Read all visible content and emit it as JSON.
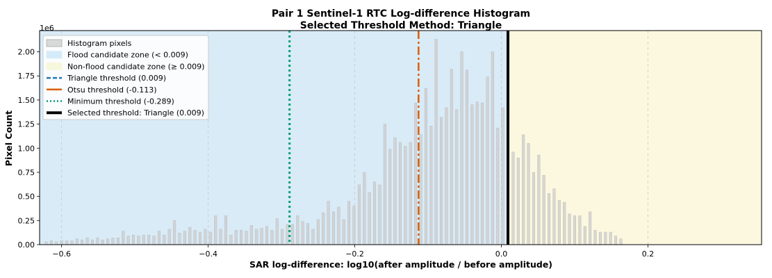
{
  "chart_data": {
    "type": "bar",
    "title": "Pair 1 Sentinel-1 RTC Log-difference Histogram",
    "subtitle": "Selected Threshold Method: Triangle",
    "xlabel": "SAR log-difference: log10(after amplitude / before amplitude)",
    "ylabel": "Pixel Count",
    "y_offset_label": "1e6",
    "xlim": [
      -0.63,
      0.355
    ],
    "ylim": [
      0,
      2.22
    ],
    "y_unit_scale": 1000000,
    "x_ticks": [
      -0.6,
      -0.4,
      -0.2,
      0.0,
      0.2
    ],
    "x_tick_labels": [
      "−0.6",
      "−0.4",
      "−0.2",
      "0.0",
      "0.2"
    ],
    "y_ticks": [
      0,
      0.25,
      0.5,
      0.75,
      1.0,
      1.25,
      1.5,
      1.75,
      2.0
    ],
    "y_tick_labels": [
      "0.00",
      "0.25",
      "0.50",
      "0.75",
      "1.00",
      "1.25",
      "1.50",
      "1.75",
      "2.00"
    ],
    "grid": "vertical-dashed",
    "legend_position": "top-left",
    "flood_zone": {
      "x_min": -0.63,
      "x_max": 0.009,
      "color": "#d9ebf7"
    },
    "nonflood_zone": {
      "x_min": 0.009,
      "x_max": 0.355,
      "color": "#fcf8e0"
    },
    "thresholds": [
      {
        "key": "triangle",
        "x": 0.009,
        "color": "#1f77b4",
        "style": "dashed"
      },
      {
        "key": "otsu",
        "x": -0.113,
        "color": "#d95f02",
        "style": "dashdot"
      },
      {
        "key": "minimum",
        "x": -0.289,
        "color": "#009e73",
        "style": "dotted"
      },
      {
        "key": "selected",
        "x": 0.009,
        "color": "#000000",
        "style": "solid"
      }
    ],
    "histogram": {
      "bar_color": "#cccccc",
      "bins": [
        {
          "x": -0.621,
          "y": 0.03
        },
        {
          "x": -0.614,
          "y": 0.04
        },
        {
          "x": -0.607,
          "y": 0.03
        },
        {
          "x": -0.6,
          "y": 0.04
        },
        {
          "x": -0.593,
          "y": 0.04
        },
        {
          "x": -0.586,
          "y": 0.04
        },
        {
          "x": -0.579,
          "y": 0.06
        },
        {
          "x": -0.572,
          "y": 0.05
        },
        {
          "x": -0.565,
          "y": 0.07
        },
        {
          "x": -0.558,
          "y": 0.05
        },
        {
          "x": -0.551,
          "y": 0.07
        },
        {
          "x": -0.544,
          "y": 0.05
        },
        {
          "x": -0.537,
          "y": 0.06
        },
        {
          "x": -0.53,
          "y": 0.07
        },
        {
          "x": -0.523,
          "y": 0.07
        },
        {
          "x": -0.516,
          "y": 0.14
        },
        {
          "x": -0.509,
          "y": 0.09
        },
        {
          "x": -0.502,
          "y": 0.1
        },
        {
          "x": -0.495,
          "y": 0.09
        },
        {
          "x": -0.488,
          "y": 0.1
        },
        {
          "x": -0.481,
          "y": 0.1
        },
        {
          "x": -0.474,
          "y": 0.09
        },
        {
          "x": -0.467,
          "y": 0.14
        },
        {
          "x": -0.46,
          "y": 0.1
        },
        {
          "x": -0.453,
          "y": 0.16
        },
        {
          "x": -0.446,
          "y": 0.25
        },
        {
          "x": -0.439,
          "y": 0.12
        },
        {
          "x": -0.432,
          "y": 0.14
        },
        {
          "x": -0.425,
          "y": 0.18
        },
        {
          "x": -0.418,
          "y": 0.15
        },
        {
          "x": -0.411,
          "y": 0.13
        },
        {
          "x": -0.404,
          "y": 0.16
        },
        {
          "x": -0.397,
          "y": 0.13
        },
        {
          "x": -0.39,
          "y": 0.3
        },
        {
          "x": -0.383,
          "y": 0.16
        },
        {
          "x": -0.376,
          "y": 0.3
        },
        {
          "x": -0.369,
          "y": 0.1
        },
        {
          "x": -0.362,
          "y": 0.15
        },
        {
          "x": -0.355,
          "y": 0.15
        },
        {
          "x": -0.348,
          "y": 0.14
        },
        {
          "x": -0.341,
          "y": 0.2
        },
        {
          "x": -0.334,
          "y": 0.16
        },
        {
          "x": -0.327,
          "y": 0.17
        },
        {
          "x": -0.32,
          "y": 0.19
        },
        {
          "x": -0.313,
          "y": 0.15
        },
        {
          "x": -0.306,
          "y": 0.27
        },
        {
          "x": -0.299,
          "y": 0.16
        },
        {
          "x": -0.292,
          "y": 0.21
        },
        {
          "x": -0.285,
          "y": 0.21
        },
        {
          "x": -0.278,
          "y": 0.3
        },
        {
          "x": -0.271,
          "y": 0.24
        },
        {
          "x": -0.264,
          "y": 0.22
        },
        {
          "x": -0.257,
          "y": 0.16
        },
        {
          "x": -0.25,
          "y": 0.26
        },
        {
          "x": -0.243,
          "y": 0.33
        },
        {
          "x": -0.236,
          "y": 0.45
        },
        {
          "x": -0.229,
          "y": 0.34
        },
        {
          "x": -0.222,
          "y": 0.39
        },
        {
          "x": -0.215,
          "y": 0.26
        },
        {
          "x": -0.208,
          "y": 0.45
        },
        {
          "x": -0.201,
          "y": 0.4
        },
        {
          "x": -0.194,
          "y": 0.62
        },
        {
          "x": -0.187,
          "y": 0.75
        },
        {
          "x": -0.18,
          "y": 0.54
        },
        {
          "x": -0.173,
          "y": 0.65
        },
        {
          "x": -0.166,
          "y": 0.62
        },
        {
          "x": -0.159,
          "y": 1.25
        },
        {
          "x": -0.152,
          "y": 0.99
        },
        {
          "x": -0.145,
          "y": 1.11
        },
        {
          "x": -0.138,
          "y": 1.06
        },
        {
          "x": -0.131,
          "y": 1.02
        },
        {
          "x": -0.124,
          "y": 1.06
        },
        {
          "x": -0.117,
          "y": 1.47
        },
        {
          "x": -0.11,
          "y": 1.14
        },
        {
          "x": -0.103,
          "y": 1.62
        },
        {
          "x": -0.096,
          "y": 1.23
        },
        {
          "x": -0.089,
          "y": 2.13
        },
        {
          "x": -0.082,
          "y": 1.32
        },
        {
          "x": -0.075,
          "y": 1.42
        },
        {
          "x": -0.068,
          "y": 1.82
        },
        {
          "x": -0.061,
          "y": 1.4
        },
        {
          "x": -0.054,
          "y": 2.0
        },
        {
          "x": -0.047,
          "y": 1.81
        },
        {
          "x": -0.04,
          "y": 1.45
        },
        {
          "x": -0.033,
          "y": 1.48
        },
        {
          "x": -0.026,
          "y": 1.47
        },
        {
          "x": -0.019,
          "y": 1.74
        },
        {
          "x": -0.012,
          "y": 2.0
        },
        {
          "x": -0.005,
          "y": 1.21
        },
        {
          "x": 0.002,
          "y": 1.42
        },
        {
          "x": 0.009,
          "y": 1.3
        },
        {
          "x": 0.016,
          "y": 0.96
        },
        {
          "x": 0.023,
          "y": 0.9
        },
        {
          "x": 0.03,
          "y": 1.14
        },
        {
          "x": 0.037,
          "y": 1.05
        },
        {
          "x": 0.044,
          "y": 0.75
        },
        {
          "x": 0.051,
          "y": 0.93
        },
        {
          "x": 0.058,
          "y": 0.72
        },
        {
          "x": 0.065,
          "y": 0.53
        },
        {
          "x": 0.072,
          "y": 0.58
        },
        {
          "x": 0.079,
          "y": 0.46
        },
        {
          "x": 0.086,
          "y": 0.44
        },
        {
          "x": 0.093,
          "y": 0.32
        },
        {
          "x": 0.1,
          "y": 0.3
        },
        {
          "x": 0.107,
          "y": 0.3
        },
        {
          "x": 0.114,
          "y": 0.19
        },
        {
          "x": 0.121,
          "y": 0.34
        },
        {
          "x": 0.128,
          "y": 0.15
        },
        {
          "x": 0.135,
          "y": 0.13
        },
        {
          "x": 0.142,
          "y": 0.13
        },
        {
          "x": 0.149,
          "y": 0.13
        },
        {
          "x": 0.156,
          "y": 0.09
        },
        {
          "x": 0.163,
          "y": 0.06
        }
      ]
    },
    "legend": [
      {
        "key": "hist",
        "label": "Histogram pixels",
        "kind": "patch",
        "color": "#d9d9d9",
        "edge": "#aaaaaa"
      },
      {
        "key": "flood",
        "label": "Flood candidate zone (< 0.009)",
        "kind": "patch",
        "color": "#d6ebfa",
        "edge": "#d6ebfa"
      },
      {
        "key": "nonflood",
        "label": "Non-flood candidate zone (≥ 0.009)",
        "kind": "patch",
        "color": "#f7f7dc",
        "edge": "#f7f7dc"
      },
      {
        "key": "triangle",
        "label": "Triangle threshold (0.009)",
        "kind": "line",
        "color": "#1f77b4",
        "dash": "6,3"
      },
      {
        "key": "otsu",
        "label": "Otsu threshold (-0.113)",
        "kind": "line",
        "color": "#d95f02",
        "dash": ""
      },
      {
        "key": "minimum",
        "label": "Minimum threshold (-0.289)",
        "kind": "line",
        "color": "#009e73",
        "dash": "2,3"
      },
      {
        "key": "selected",
        "label": "Selected threshold: Triangle (0.009)",
        "kind": "line",
        "color": "#000000",
        "dash": ""
      }
    ]
  }
}
